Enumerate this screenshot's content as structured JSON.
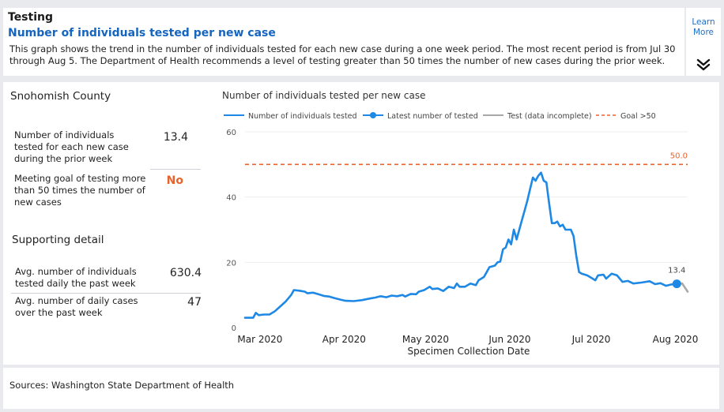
{
  "header": {
    "title": "Testing",
    "subtitle": "Number of individuals tested per new case",
    "description": "This graph shows the trend in the number of individuals tested for each new case during a one week period. The most recent period is from Jul 30 through Aug 5. The Department of Health recommends a level of testing greater than 50 times the number of new cases during the prior week.",
    "learn_more": "Learn More",
    "expand_icon": "double-chevron-down-icon"
  },
  "summary": {
    "county": "Snohomish County",
    "kpis": [
      {
        "label": "Number of individuals tested for each new case during the prior week",
        "value": "13.4"
      },
      {
        "label": "Meeting goal of testing more than 50 times the number of new cases",
        "value": "No"
      }
    ],
    "supporting_title": "Supporting detail",
    "details": [
      {
        "label": "Avg. number of individuals tested daily the past week",
        "value": "630.4"
      },
      {
        "label": "Avg. number of daily cases over the past week",
        "value": "47"
      }
    ]
  },
  "colors": {
    "series": "#1e88e5",
    "incomplete": "#a8a8a8",
    "goal": "#e8632b",
    "no_value": "#e8632b",
    "link": "#1565c0"
  },
  "chart_data": {
    "type": "line",
    "title": "Number of individuals tested per new case",
    "xlabel": "Specimen Collection Date",
    "ylabel": "",
    "ylim": [
      0,
      60
    ],
    "yticks": [
      0,
      20,
      40,
      60
    ],
    "xticks": [
      "Mar 2020",
      "Apr 2020",
      "May 2020",
      "Jun 2020",
      "Jul 2020",
      "Aug 2020"
    ],
    "legend_position": "top",
    "legend": [
      "Number of individuals tested",
      "Latest number of tested",
      "Test (data incomplete)",
      "Goal >50"
    ],
    "goal": {
      "value": 50,
      "label": "50.0"
    },
    "latest": {
      "date": "2020-08-05",
      "value": 13.4,
      "label": "13.4"
    },
    "series": [
      {
        "name": "Number of individuals tested",
        "points": [
          [
            "2020-02-28",
            3.0
          ],
          [
            "2020-03-02",
            3.0
          ],
          [
            "2020-03-03",
            4.5
          ],
          [
            "2020-03-04",
            3.8
          ],
          [
            "2020-03-06",
            4.0
          ],
          [
            "2020-03-08",
            4.0
          ],
          [
            "2020-03-10",
            5.0
          ],
          [
            "2020-03-12",
            6.5
          ],
          [
            "2020-03-14",
            8.0
          ],
          [
            "2020-03-16",
            10.0
          ],
          [
            "2020-03-17",
            11.5
          ],
          [
            "2020-03-19",
            11.3
          ],
          [
            "2020-03-21",
            11.0
          ],
          [
            "2020-03-22",
            10.5
          ],
          [
            "2020-03-24",
            10.7
          ],
          [
            "2020-03-26",
            10.2
          ],
          [
            "2020-03-28",
            9.7
          ],
          [
            "2020-03-30",
            9.5
          ],
          [
            "2020-04-01",
            9.0
          ],
          [
            "2020-04-03",
            8.6
          ],
          [
            "2020-04-05",
            8.2
          ],
          [
            "2020-04-08",
            8.1
          ],
          [
            "2020-04-11",
            8.4
          ],
          [
            "2020-04-14",
            8.9
          ],
          [
            "2020-04-16",
            9.2
          ],
          [
            "2020-04-18",
            9.6
          ],
          [
            "2020-04-20",
            9.3
          ],
          [
            "2020-04-22",
            9.8
          ],
          [
            "2020-04-24",
            9.6
          ],
          [
            "2020-04-26",
            10.0
          ],
          [
            "2020-04-27",
            9.5
          ],
          [
            "2020-04-29",
            10.3
          ],
          [
            "2020-05-01",
            10.2
          ],
          [
            "2020-05-02",
            11.0
          ],
          [
            "2020-05-04",
            11.5
          ],
          [
            "2020-05-06",
            12.5
          ],
          [
            "2020-05-07",
            11.8
          ],
          [
            "2020-05-09",
            12.0
          ],
          [
            "2020-05-11",
            11.2
          ],
          [
            "2020-05-13",
            12.5
          ],
          [
            "2020-05-15",
            12.1
          ],
          [
            "2020-05-16",
            13.5
          ],
          [
            "2020-05-17",
            12.5
          ],
          [
            "2020-05-19",
            12.5
          ],
          [
            "2020-05-21",
            13.5
          ],
          [
            "2020-05-23",
            13.0
          ],
          [
            "2020-05-24",
            14.5
          ],
          [
            "2020-05-26",
            15.5
          ],
          [
            "2020-05-27",
            17.0
          ],
          [
            "2020-05-28",
            18.5
          ],
          [
            "2020-05-30",
            19.0
          ],
          [
            "2020-05-31",
            20.0
          ],
          [
            "2020-06-01",
            20.2
          ],
          [
            "2020-06-02",
            24.0
          ],
          [
            "2020-06-03",
            24.5
          ],
          [
            "2020-06-04",
            27.0
          ],
          [
            "2020-06-05",
            25.5
          ],
          [
            "2020-06-06",
            30.0
          ],
          [
            "2020-06-07",
            27.0
          ],
          [
            "2020-06-08",
            30.0
          ],
          [
            "2020-06-09",
            33.0
          ],
          [
            "2020-06-10",
            36.0
          ],
          [
            "2020-06-11",
            39.0
          ],
          [
            "2020-06-12",
            42.5
          ],
          [
            "2020-06-13",
            46.0
          ],
          [
            "2020-06-14",
            45.0
          ],
          [
            "2020-06-15",
            46.5
          ],
          [
            "2020-06-16",
            47.5
          ],
          [
            "2020-06-17",
            45.0
          ],
          [
            "2020-06-18",
            44.5
          ],
          [
            "2020-06-19",
            38.0
          ],
          [
            "2020-06-20",
            32.0
          ],
          [
            "2020-06-21",
            32.0
          ],
          [
            "2020-06-22",
            32.5
          ],
          [
            "2020-06-23",
            31.0
          ],
          [
            "2020-06-24",
            31.5
          ],
          [
            "2020-06-25",
            30.0
          ],
          [
            "2020-06-27",
            30.0
          ],
          [
            "2020-06-28",
            28.0
          ],
          [
            "2020-06-29",
            22.0
          ],
          [
            "2020-06-30",
            17.0
          ],
          [
            "2020-07-01",
            16.5
          ],
          [
            "2020-07-03",
            16.0
          ],
          [
            "2020-07-05",
            15.0
          ],
          [
            "2020-07-06",
            14.5
          ],
          [
            "2020-07-07",
            16.0
          ],
          [
            "2020-07-09",
            16.2
          ],
          [
            "2020-07-10",
            15.0
          ],
          [
            "2020-07-12",
            16.5
          ],
          [
            "2020-07-14",
            16.0
          ],
          [
            "2020-07-15",
            15.0
          ],
          [
            "2020-07-16",
            14.0
          ],
          [
            "2020-07-18",
            14.3
          ],
          [
            "2020-07-20",
            13.5
          ],
          [
            "2020-07-23",
            13.8
          ],
          [
            "2020-07-26",
            14.2
          ],
          [
            "2020-07-28",
            13.3
          ],
          [
            "2020-07-30",
            13.6
          ],
          [
            "2020-08-01",
            12.8
          ],
          [
            "2020-08-03",
            13.2
          ],
          [
            "2020-08-05",
            13.4
          ]
        ]
      },
      {
        "name": "Test (data incomplete)",
        "points": [
          [
            "2020-08-05",
            13.4
          ],
          [
            "2020-08-07",
            13.5
          ],
          [
            "2020-08-09",
            11.0
          ]
        ]
      }
    ]
  },
  "footer": {
    "sources": "Sources: Washington State Department of Health"
  }
}
